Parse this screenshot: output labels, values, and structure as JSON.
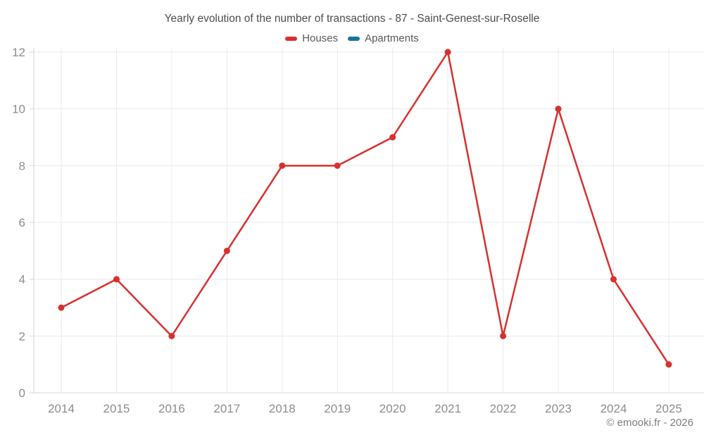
{
  "header": {
    "title": "Yearly evolution of the number of transactions - 87 - Saint-Genest-sur-Roselle"
  },
  "legend": {
    "items": [
      {
        "label": "Houses",
        "color": "#d7302f"
      },
      {
        "label": "Apartments",
        "color": "#16739e"
      }
    ]
  },
  "chart_data": {
    "type": "line",
    "title": "Yearly evolution of the number of transactions - 87 - Saint-Genest-sur-Roselle",
    "categories": [
      "2014",
      "2015",
      "2016",
      "2017",
      "2018",
      "2019",
      "2020",
      "2021",
      "2022",
      "2023",
      "2024",
      "2025"
    ],
    "series": [
      {
        "name": "Houses",
        "color": "#d7302f",
        "values": [
          3,
          4,
          2,
          5,
          8,
          8,
          9,
          12,
          2,
          10,
          4,
          1
        ]
      },
      {
        "name": "Apartments",
        "color": "#16739e",
        "values": []
      }
    ],
    "xlabel": "",
    "ylabel": "",
    "ylim": [
      0,
      12
    ],
    "yticks": [
      0,
      2,
      4,
      6,
      8,
      10,
      12
    ],
    "grid": true,
    "legend_position": "top",
    "marker": "circle"
  },
  "footer": {
    "credit": "© emooki.fr - 2026"
  }
}
